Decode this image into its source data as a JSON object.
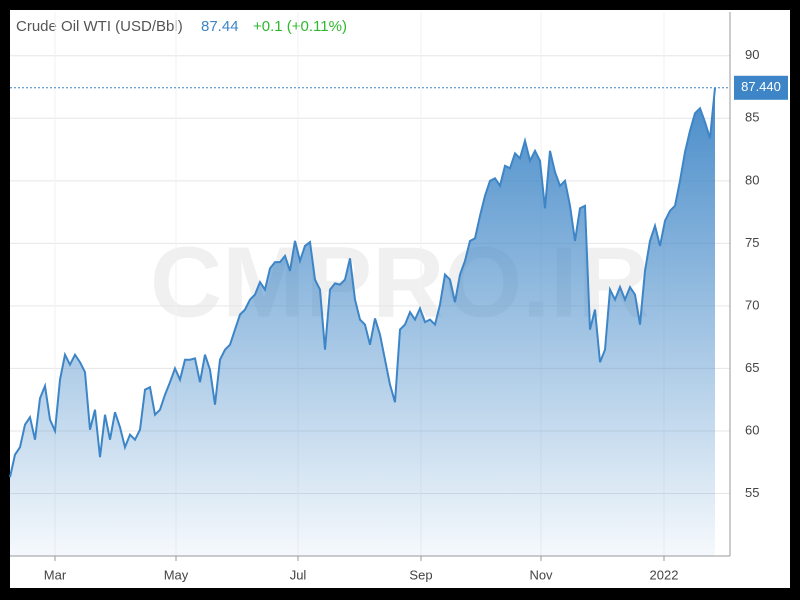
{
  "header": {
    "title": "Crude Oil WTI (USD/Bbl)",
    "price": "87.44",
    "change": "+0.1 (+0.11%)"
  },
  "chart_data": {
    "type": "area",
    "watermark": "CMPRO.IR",
    "color": "#3d85c6",
    "values": [
      56.3,
      58.1,
      58.7,
      60.5,
      61.1,
      59.3,
      62.6,
      63.6,
      60.9,
      60,
      64.1,
      66.1,
      65.3,
      66.1,
      65.5,
      64.7,
      60.1,
      61.7,
      57.9,
      61.3,
      59.3,
      61.5,
      60.3,
      58.7,
      59.7,
      59.3,
      60.1,
      63.3,
      63.5,
      61.3,
      61.7,
      62.9,
      63.9,
      65.0,
      64.1,
      65.7,
      65.7,
      65.8,
      63.9,
      66.1,
      64.9,
      62.1,
      65.7,
      66.5,
      66.9,
      68.1,
      69.3,
      69.7,
      70.5,
      70.9,
      71.9,
      71.3,
      73.0,
      73.5,
      73.5,
      74.0,
      72.8,
      75.2,
      73.6,
      74.8,
      75.1,
      72.1,
      71.3,
      66.5,
      71.3,
      71.8,
      71.7,
      72.1,
      73.8,
      70.5,
      68.9,
      68.5,
      66.9,
      69.0,
      67.7,
      65.7,
      63.7,
      62.3,
      68.1,
      68.5,
      69.5,
      68.9,
      69.8,
      68.7,
      68.9,
      68.5,
      70.1,
      72.5,
      72.1,
      70.3,
      72.5,
      73.6,
      75.2,
      75.4,
      77.2,
      78.8,
      80.0,
      80.2,
      79.6,
      81.2,
      81.0,
      82.2,
      81.8,
      83.2,
      81.6,
      82.4,
      81.6,
      77.8,
      82.4,
      80.7,
      79.6,
      80.0,
      78.0,
      75.2,
      77.8,
      78.0,
      68.1,
      69.7,
      65.5,
      66.5,
      71.3,
      70.5,
      71.5,
      70.5,
      71.5,
      70.9,
      68.5,
      72.8,
      75.2,
      76.4,
      74.8,
      76.8,
      77.6,
      78.0,
      80.0,
      82.3,
      84.0,
      85.4,
      85.8,
      84.7,
      83.4,
      87.44
    ],
    "last_label": "87.440",
    "xlim": [
      0,
      144
    ],
    "xticks": [
      {
        "value": 9,
        "label": "Mar"
      },
      {
        "value": 33.2,
        "label": "May"
      },
      {
        "value": 57.6,
        "label": "Jul"
      },
      {
        "value": 82.2,
        "label": "Sep"
      },
      {
        "value": 106.2,
        "label": "Nov"
      },
      {
        "value": 130.8,
        "label": "2022"
      }
    ],
    "ylim": [
      50,
      93.5
    ],
    "yticks": [
      55,
      60,
      65,
      70,
      75,
      80,
      85,
      90
    ],
    "grid": true
  }
}
